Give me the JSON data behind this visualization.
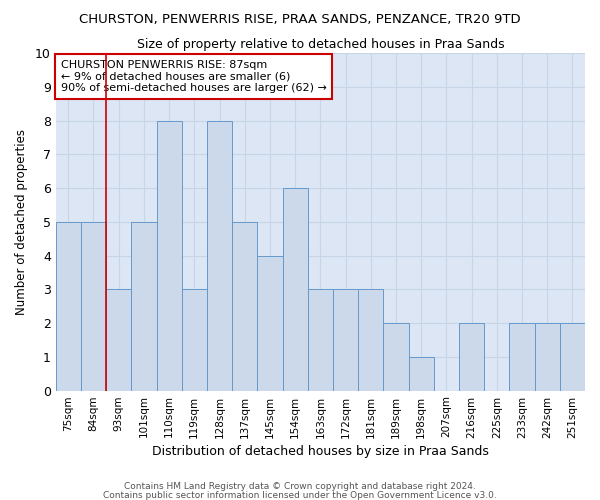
{
  "title": "CHURSTON, PENWERRIS RISE, PRAA SANDS, PENZANCE, TR20 9TD",
  "subtitle": "Size of property relative to detached houses in Praa Sands",
  "xlabel": "Distribution of detached houses by size in Praa Sands",
  "ylabel": "Number of detached properties",
  "categories": [
    "75sqm",
    "84sqm",
    "93sqm",
    "101sqm",
    "110sqm",
    "119sqm",
    "128sqm",
    "137sqm",
    "145sqm",
    "154sqm",
    "163sqm",
    "172sqm",
    "181sqm",
    "189sqm",
    "198sqm",
    "207sqm",
    "216sqm",
    "225sqm",
    "233sqm",
    "242sqm",
    "251sqm"
  ],
  "values": [
    5,
    5,
    3,
    5,
    8,
    3,
    8,
    5,
    4,
    6,
    3,
    3,
    3,
    2,
    1,
    0,
    2,
    0,
    2,
    2,
    2
  ],
  "bar_color": "#ccd9ea",
  "bar_edge_color": "#6699cc",
  "grid_color": "#c8d4e8",
  "background_color": "#dce6f5",
  "annotation_box_color": "#ffffff",
  "annotation_border_color": "#cc0000",
  "annotation_text_line1": "CHURSTON PENWERRIS RISE: 87sqm",
  "annotation_text_line2": "← 9% of detached houses are smaller (6)",
  "annotation_text_line3": "90% of semi-detached houses are larger (62) →",
  "red_line_x": 1.5,
  "ylim": [
    0,
    10
  ],
  "yticks": [
    0,
    1,
    2,
    3,
    4,
    5,
    6,
    7,
    8,
    9,
    10
  ],
  "footer1": "Contains HM Land Registry data © Crown copyright and database right 2024.",
  "footer2": "Contains public sector information licensed under the Open Government Licence v3.0."
}
